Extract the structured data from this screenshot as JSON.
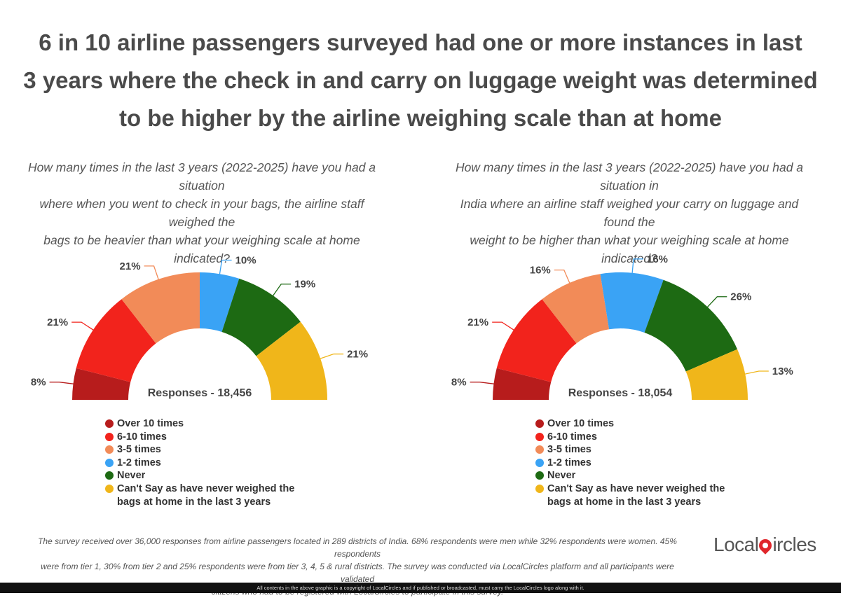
{
  "title_lines": [
    "6 in 10 airline passengers surveyed had one or more instances in last",
    "3 years where the check in and carry on luggage weight was determined",
    "to be higher by the airline weighing scale than at home"
  ],
  "colors": {
    "over_10": "#b71c1c",
    "six_10": "#f2231c",
    "three_5": "#f28b58",
    "one_2": "#3aa3f5",
    "never": "#1d6a13",
    "cant_say": "#f0b61a"
  },
  "legend": [
    {
      "label": "Over 10 times",
      "color": "#b71c1c"
    },
    {
      "label": "6-10 times",
      "color": "#f2231c"
    },
    {
      "label": "3-5 times",
      "color": "#f28b58"
    },
    {
      "label": "1-2 times",
      "color": "#3aa3f5"
    },
    {
      "label": "Never",
      "color": "#1d6a13"
    },
    {
      "label": "Can't Say as have never weighed the bags at home in the last 3 years",
      "color": "#f0b61a"
    }
  ],
  "chart_data": [
    {
      "type": "pie",
      "subtype": "semi-donut",
      "question_lines": [
        "How many times in the last 3 years (2022-2025) have you had a situation",
        "where when you went to check in your bags, the airline staff weighed the",
        "bags to be heavier than what your weighing scale at home indicated?"
      ],
      "responses": "Responses - 18,456",
      "categories": [
        "Over 10 times",
        "6-10 times",
        "3-5 times",
        "1-2 times",
        "Never",
        "Can't Say as have never weighed the bags at home in the last 3 years"
      ],
      "values": [
        8,
        21,
        21,
        10,
        19,
        21
      ],
      "labels": [
        "8%",
        "21%",
        "21%",
        "10%",
        "19%",
        "21%"
      ],
      "legend": "bottom"
    },
    {
      "type": "pie",
      "subtype": "semi-donut",
      "question_lines": [
        "How many times in the last 3 years (2022-2025) have you had a situation in",
        "India where an airline staff weighed your carry on luggage and found the",
        "weight to be higher than what your weighing scale at home indicated?"
      ],
      "responses": "Responses - 18,054",
      "categories": [
        "Over 10 times",
        "6-10 times",
        "3-5 times",
        "1-2 times",
        "Never",
        "Can't Say as have never weighed the bags at home in the last 3 years"
      ],
      "values": [
        8,
        21,
        16,
        16,
        26,
        13
      ],
      "labels": [
        "8%",
        "21%",
        "16%",
        "16%",
        "26%",
        "13%"
      ],
      "legend": "bottom"
    }
  ],
  "footer_lines": [
    "The survey received over 36,000 responses from airline passengers located in 289 districts of India. 68% respondents were men while 32% respondents were women. 45% respondents",
    "were from tier 1, 30% from tier 2 and 25% respondents were from tier 3, 4, 5 & rural districts. The survey was conducted via LocalCircles platform and all participants were validated",
    "citizens who had to be registered with LocalCircles to participate in this survey."
  ],
  "logo": {
    "part1": "Local",
    "part2": "ircles"
  },
  "copyright": "All contents in the above graphic is a copyright of LocalCircles and if published or broadcasted, must carry the LocalCircles logo along with it."
}
